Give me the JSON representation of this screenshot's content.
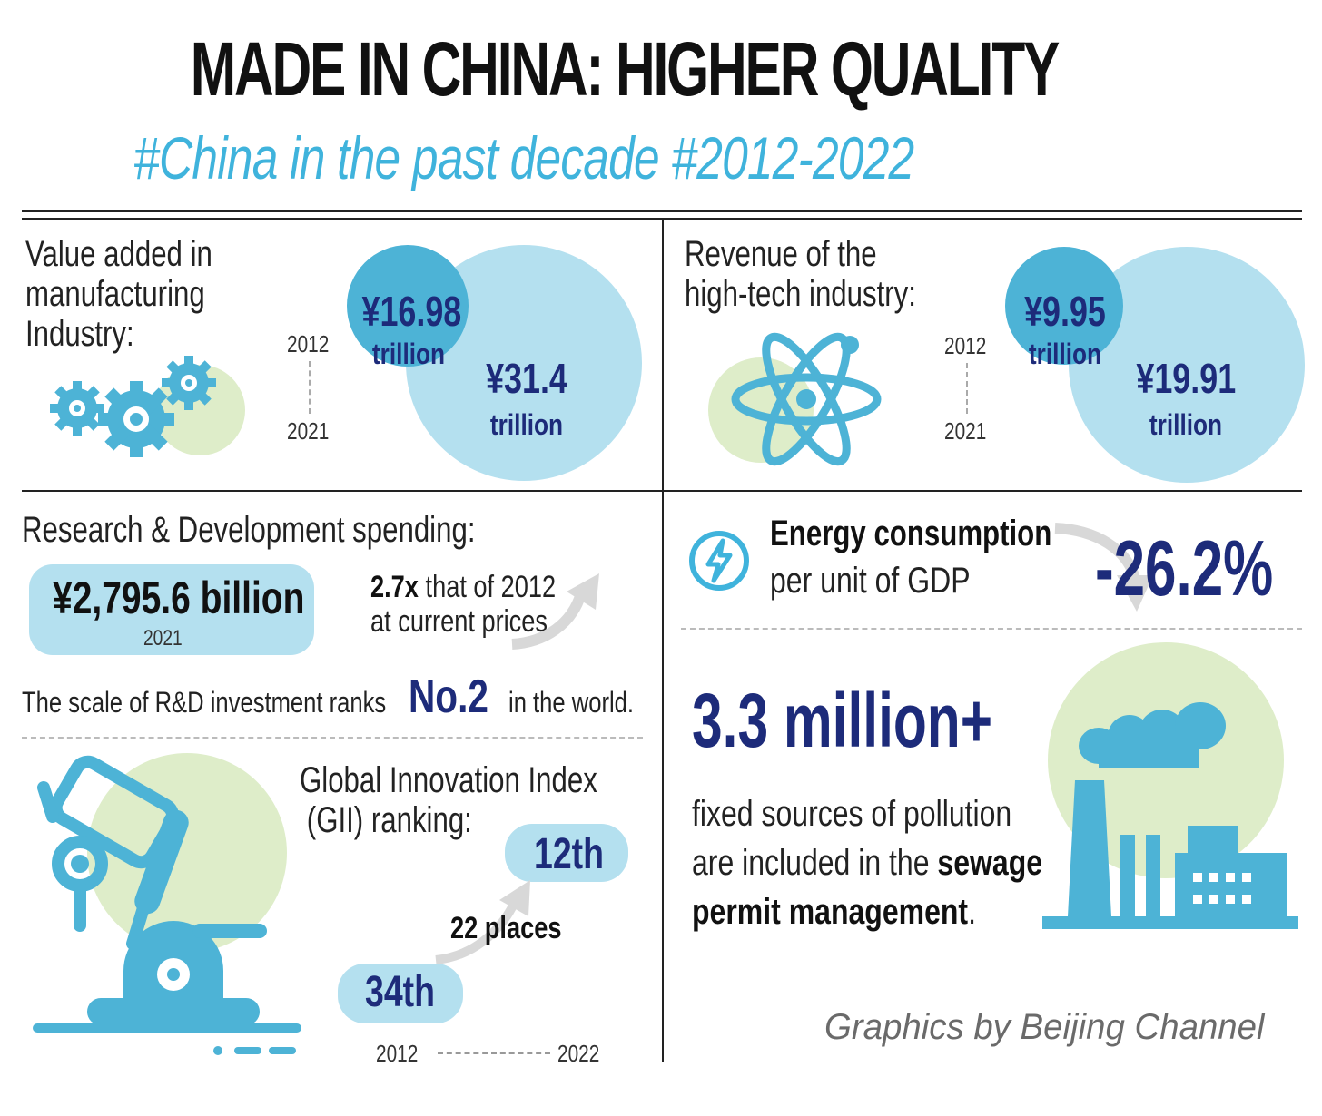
{
  "header": {
    "title": "MADE IN CHINA: HIGHER QUALITY",
    "subtitle": "#China in the past decade  #2012-2022"
  },
  "manufacturing": {
    "label_line1": "Value added in",
    "label_line2": "manufacturing",
    "label_line3": "Industry:",
    "year_start": "2012",
    "year_end": "2021",
    "value_2012": "¥16.98",
    "unit_2012": "trillion",
    "value_2021": "¥31.4",
    "unit_2021": "trillion",
    "icon": "gears-icon"
  },
  "hightech": {
    "label_line1": "Revenue of the",
    "label_line2": "high-tech industry:",
    "year_start": "2012",
    "year_end": "2021",
    "value_2012": "¥9.95",
    "unit_2012": "trillion",
    "value_2021": "¥19.91",
    "unit_2021": "trillion",
    "icon": "atom-icon"
  },
  "rnd": {
    "label": "Research & Development  spending:",
    "amount": "¥2,795.6 billion",
    "amount_year": "2021",
    "multiple": "2.7x",
    "multiple_rest": " that of 2012",
    "multiple_line2": "at current prices",
    "rank_prefix": "The scale of R&D investment ranks",
    "rank_value": "No.2",
    "rank_suffix": "in the world."
  },
  "gii": {
    "label_line1": "Global Innovation Index",
    "label_line2": "(GII) ranking:",
    "rank_2012": "34th",
    "rank_2022": "12th",
    "change": "22 places",
    "year_start": "2012",
    "year_end": "2022",
    "icon": "microscope-icon"
  },
  "energy": {
    "label_bold": "Energy consumption",
    "label_rest": "per unit of GDP",
    "change": "-26.2%",
    "icon": "lightning-icon"
  },
  "pollution": {
    "value": "3.3 million+",
    "line1": "fixed sources of pollution",
    "line2_plain": "are included in the ",
    "line2_bold": "sewage",
    "line3_bold": "permit management",
    "line3_end": ".",
    "icon": "factory-icon"
  },
  "credit": "Graphics by Beijing Channel",
  "colors": {
    "accent_blue": "#3fb3dc",
    "light_blue": "#b4e0ef",
    "mid_blue": "#4db3d6",
    "light_green": "#deedc9",
    "navy": "#1d2b7a"
  }
}
